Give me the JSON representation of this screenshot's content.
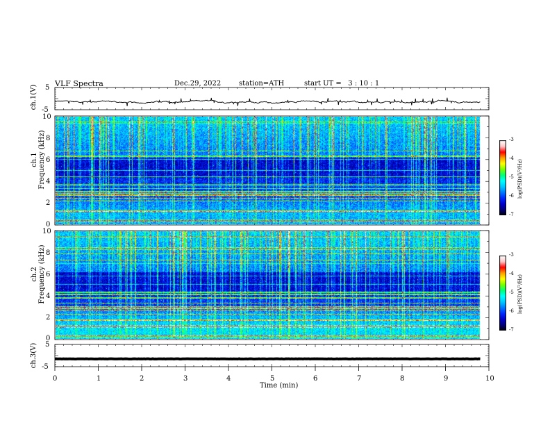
{
  "header": {
    "title": "VLF Spectra",
    "date": "Dec.29, 2022",
    "station": "station=ATH",
    "start_ut": "start UT =   3 : 10 : 1"
  },
  "colors": {
    "waveform": "#000000",
    "background": "#ffffff",
    "colormap": [
      "#000000",
      "#0000aa",
      "#0044ff",
      "#00a0ff",
      "#00ffff",
      "#00ff60",
      "#aaff00",
      "#ffff00",
      "#ffaa00",
      "#ff0000",
      "#ffc8c8",
      "#ffffff"
    ]
  },
  "chart_data": [
    {
      "type": "line",
      "title": "",
      "ylabel": "ch.1(V)",
      "xlim": [
        0,
        10
      ],
      "ylim": [
        -5,
        5
      ],
      "yticks": [
        "5",
        "-5"
      ],
      "description_level": "waveform fluctuating around -1.5 V, amplitude about 0.6 V",
      "mean": -1.5
    },
    {
      "type": "heatmap",
      "ylabel": "ch.1\nFrequency (kHz)",
      "xlim": [
        0,
        9.8
      ],
      "ylim": [
        0,
        10
      ],
      "yticks": [
        "0",
        "2",
        "4",
        "6",
        "8",
        "10"
      ],
      "colorbar": {
        "label": "log(PSD)(V²/Hz)",
        "range": [
          -7,
          -3
        ],
        "ticks": [
          "-3",
          "-4",
          "-5",
          "-6",
          "-7"
        ]
      }
    },
    {
      "type": "heatmap",
      "ylabel": "ch.2\nFrequency (kHz)",
      "xlim": [
        0,
        9.8
      ],
      "ylim": [
        0,
        10
      ],
      "yticks": [
        "0",
        "2",
        "4",
        "6",
        "8",
        "10"
      ],
      "colorbar": {
        "label": "log(PSD)(V²/Hz)",
        "range": [
          -7,
          -3
        ],
        "ticks": [
          "-3",
          "-4",
          "-5",
          "-6",
          "-7"
        ]
      }
    },
    {
      "type": "line",
      "ylabel": "ch.3(V)",
      "xlim": [
        0,
        10
      ],
      "ylim": [
        -5,
        5
      ],
      "yticks": [
        "5",
        "-5"
      ],
      "mean": -1.5
    }
  ],
  "xaxis": {
    "label": "Time (min)",
    "ticks": [
      "0",
      "1",
      "2",
      "3",
      "4",
      "5",
      "6",
      "7",
      "8",
      "9",
      "10"
    ],
    "range": [
      0,
      10
    ]
  }
}
